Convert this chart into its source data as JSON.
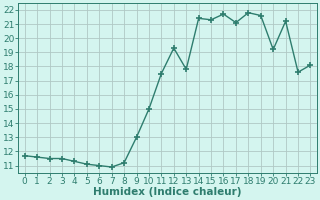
{
  "x": [
    0,
    1,
    2,
    3,
    4,
    5,
    6,
    7,
    8,
    9,
    10,
    11,
    12,
    13,
    14,
    15,
    16,
    17,
    18,
    19,
    20,
    21,
    22,
    23
  ],
  "y": [
    11.7,
    11.6,
    11.5,
    11.5,
    11.3,
    11.1,
    11.0,
    10.9,
    11.2,
    13.0,
    15.0,
    17.5,
    19.3,
    17.8,
    21.4,
    21.3,
    21.7,
    21.1,
    21.8,
    21.6,
    19.2,
    21.2,
    17.6,
    18.1
  ],
  "line_color": "#2e7d6e",
  "marker": "+",
  "markersize": 5,
  "linewidth": 1.0,
  "bg_color": "#d4f5ef",
  "grid_color": "#b0c8c4",
  "title": "",
  "xlabel": "Humidex (Indice chaleur)",
  "ylabel": "",
  "xlim": [
    -0.5,
    23.5
  ],
  "ylim": [
    10.5,
    22.5
  ],
  "yticks": [
    11,
    12,
    13,
    14,
    15,
    16,
    17,
    18,
    19,
    20,
    21,
    22
  ],
  "xtick_labels": [
    "0",
    "1",
    "2",
    "3",
    "4",
    "5",
    "6",
    "7",
    "8",
    "9",
    "10",
    "11",
    "12",
    "13",
    "14",
    "15",
    "16",
    "17",
    "18",
    "19",
    "20",
    "21",
    "22",
    "23"
  ],
  "tick_color": "#2e7d6e",
  "label_color": "#2e7d6e",
  "fontsize_ticks": 6.5,
  "fontsize_xlabel": 7.5
}
